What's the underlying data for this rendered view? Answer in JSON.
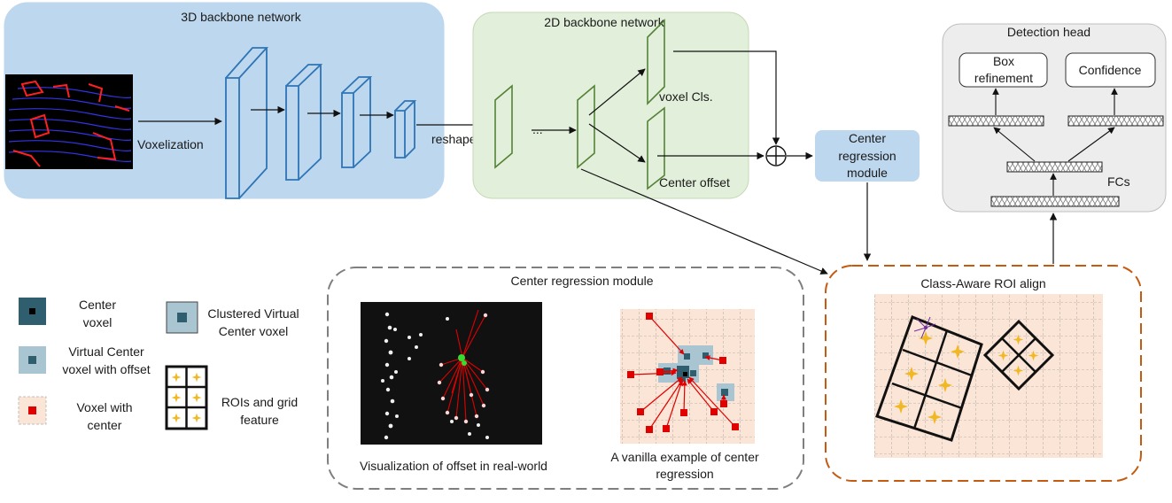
{
  "backbone3d": {
    "title": "3D backbone network",
    "voxelization": "Voxelization"
  },
  "backbone2d": {
    "title": "2D backbone network",
    "reshape": "reshape",
    "ellipsis": "...",
    "voxel_cls": "voxel Cls.",
    "center_offset": "Center offset"
  },
  "center_module_box": {
    "line1": "Center",
    "line2": "regression",
    "line3": "module"
  },
  "detection_head": {
    "title": "Detection head",
    "box_refinement_1": "Box",
    "box_refinement_2": "refinement",
    "confidence": "Confidence",
    "fcs": "FCs"
  },
  "center_regression": {
    "title": "Center regression module",
    "vis_caption": "Visualization of offset in real-world",
    "vanilla_caption_1": "A vanilla example of center",
    "vanilla_caption_2": "regression"
  },
  "roi_align": {
    "title": "Class-Aware ROI align"
  },
  "legend": {
    "center_voxel_1": "Center",
    "center_voxel_2": "voxel",
    "virtual_center_1": "Virtual Center",
    "virtual_center_2": "voxel with offset",
    "voxel_with_center_1": "Voxel with",
    "voxel_with_center_2": "center",
    "clustered_1": "Clustered Virtual",
    "clustered_2": "Center voxel",
    "rois_1": "ROIs and grid",
    "rois_2": "feature"
  },
  "colors": {
    "panel3d": "#bdd7ee",
    "panel2d": "#e2efda",
    "panelHead": "#ededed",
    "blueLayer": "#2e75b6",
    "greenLayer": "#548235",
    "peach": "#fbe5d6",
    "darkTeal": "#2f5e6e",
    "lightTeal": "#a9c5d1",
    "red": "#e00000",
    "orangeBorder": "#c55a11",
    "star": "#f2b824"
  }
}
